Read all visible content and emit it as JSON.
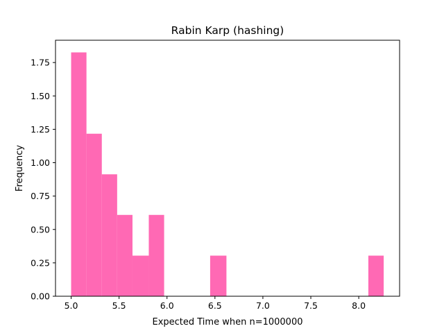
{
  "chart_data": {
    "type": "bar",
    "title": "Rabin Karp (hashing)",
    "xlabel": "Expected Time when n=1000000",
    "ylabel": "Frequency",
    "bins": [
      {
        "x0": 5.0,
        "x1": 5.16,
        "value": 1.826
      },
      {
        "x0": 5.16,
        "x1": 5.32,
        "value": 1.217
      },
      {
        "x0": 5.32,
        "x1": 5.48,
        "value": 0.913
      },
      {
        "x0": 5.48,
        "x1": 5.64,
        "value": 0.609
      },
      {
        "x0": 5.64,
        "x1": 5.81,
        "value": 0.304
      },
      {
        "x0": 5.81,
        "x1": 5.97,
        "value": 0.609
      },
      {
        "x0": 6.45,
        "x1": 6.62,
        "value": 0.304
      },
      {
        "x0": 8.1,
        "x1": 8.26,
        "value": 0.304
      }
    ],
    "xlim": [
      4.837,
      8.426
    ],
    "ylim": [
      0,
      1.917
    ],
    "xticks": [
      5.0,
      5.5,
      6.0,
      6.5,
      7.0,
      7.5,
      8.0
    ],
    "xtick_labels": [
      "5.0",
      "5.5",
      "6.0",
      "6.5",
      "7.0",
      "7.5",
      "8.0"
    ],
    "yticks": [
      0.0,
      0.25,
      0.5,
      0.75,
      1.0,
      1.25,
      1.5,
      1.75
    ],
    "ytick_labels": [
      "0.00",
      "0.25",
      "0.50",
      "0.75",
      "1.00",
      "1.25",
      "1.50",
      "1.75"
    ],
    "bar_color": "#ff69b4",
    "grid": false
  }
}
